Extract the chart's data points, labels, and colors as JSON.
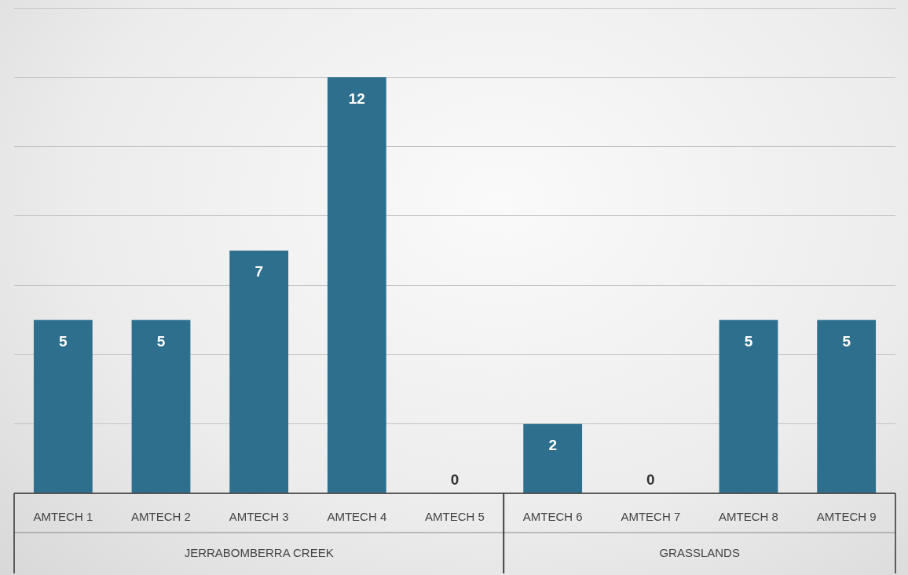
{
  "chart_data": {
    "type": "bar",
    "categories": [
      "AMTECH 1",
      "AMTECH 2",
      "AMTECH 3",
      "AMTECH 4",
      "AMTECH 5",
      "AMTECH 6",
      "AMTECH 7",
      "AMTECH 8",
      "AMTECH 9"
    ],
    "values": [
      5,
      5,
      7,
      12,
      0,
      2,
      0,
      5,
      5
    ],
    "color": "#2e6f8e",
    "ylim": [
      0,
      14
    ],
    "yticks": [
      0,
      2,
      4,
      6,
      8,
      10,
      12,
      14
    ],
    "tick_labels": "x",
    "grid": "y",
    "legend": false,
    "data_labels": true,
    "annotations": [
      "JERRABOMBERRA CREEK",
      "GRASSLANDS"
    ]
  }
}
